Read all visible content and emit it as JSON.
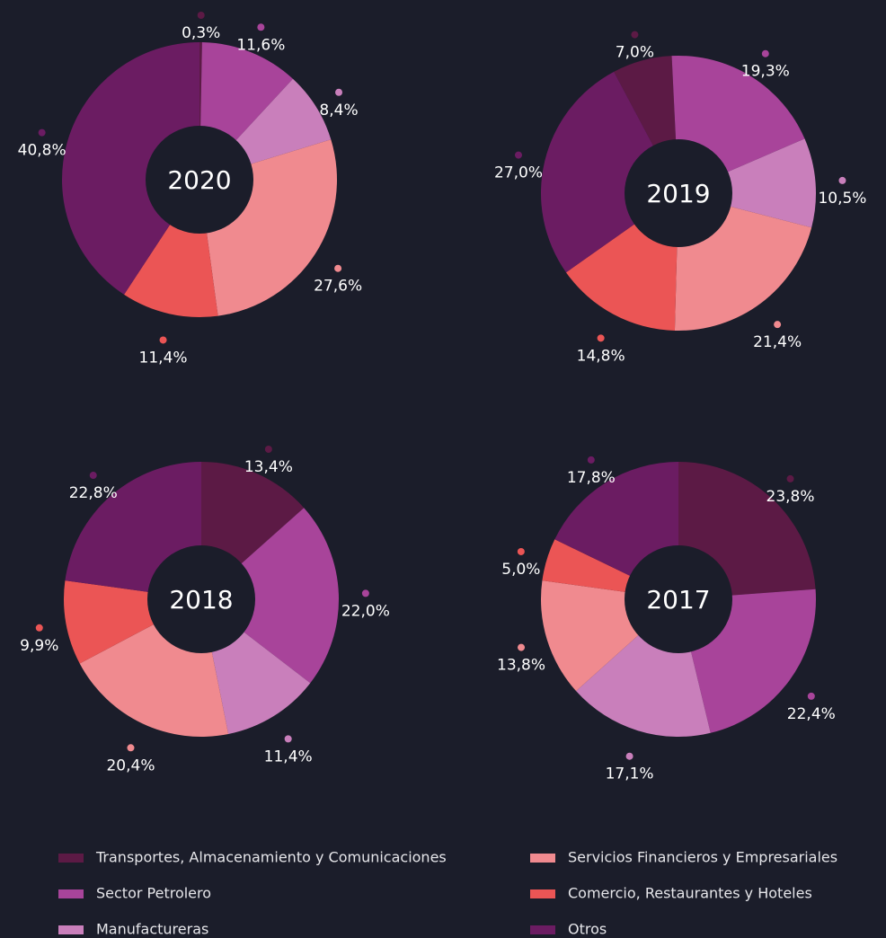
{
  "legend": {
    "categories": [
      "Transportes, Almacenamiento y Comunicaciones",
      "Sector Petrolero",
      "Manufactureras",
      "Servicios Financieros y Empresariales",
      "Comercio, Restaurantes y Hoteles",
      "Otros"
    ],
    "colors": [
      "#5c1a45",
      "#a8449a",
      "#c97fbb",
      "#f08a8f",
      "#eb5555",
      "#6b1c62"
    ]
  },
  "chart_data": [
    {
      "type": "pie",
      "title": "2020",
      "values": [
        0.3,
        11.6,
        8.4,
        27.6,
        11.4,
        40.8
      ],
      "value_labels": [
        "0,3%",
        "11,6%",
        "8,4%",
        "27,6%",
        "11,4%",
        "40,8%"
      ]
    },
    {
      "type": "pie",
      "title": "2019",
      "values": [
        7.0,
        19.3,
        10.5,
        21.4,
        14.8,
        27.0
      ],
      "value_labels": [
        "7,0%",
        "19,3%",
        "10,5%",
        "21,4%",
        "14,8%",
        "27,0%"
      ]
    },
    {
      "type": "pie",
      "title": "2018",
      "values": [
        13.4,
        22.0,
        11.4,
        20.4,
        9.9,
        22.8
      ],
      "value_labels": [
        "13,4%",
        "22,0%",
        "11,4%",
        "20,4%",
        "9,9%",
        "22,8%"
      ]
    },
    {
      "type": "pie",
      "title": "2017",
      "values": [
        23.8,
        22.4,
        17.1,
        13.8,
        5.0,
        17.8
      ],
      "value_labels": [
        "23,8%",
        "22,4%",
        "17,1%",
        "13,8%",
        "5,0%",
        "17,8%"
      ]
    }
  ]
}
